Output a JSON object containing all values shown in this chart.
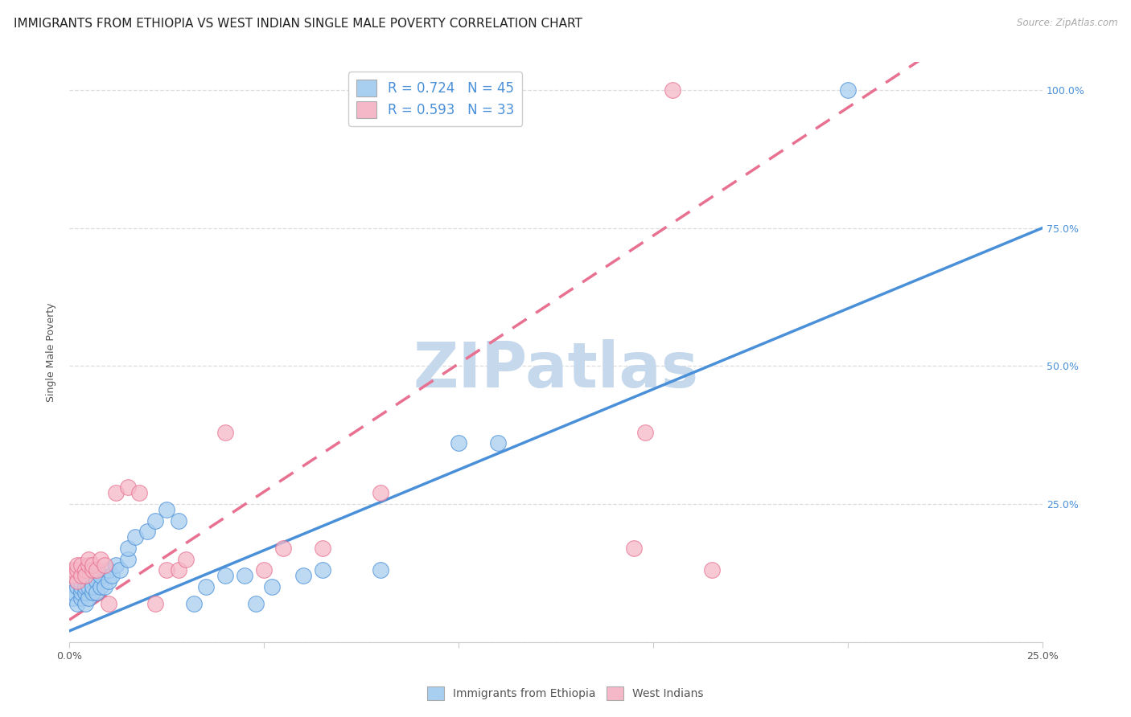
{
  "title": "IMMIGRANTS FROM ETHIOPIA VS WEST INDIAN SINGLE MALE POVERTY CORRELATION CHART",
  "source": "Source: ZipAtlas.com",
  "ylabel": "Single Male Poverty",
  "xlabel": "",
  "xlim": [
    0.0,
    0.25
  ],
  "ylim": [
    0.0,
    1.05
  ],
  "yticks": [
    0.0,
    0.25,
    0.5,
    0.75,
    1.0
  ],
  "ytick_labels": [
    "",
    "25.0%",
    "50.0%",
    "75.0%",
    "100.0%"
  ],
  "xticks": [
    0.0,
    0.05,
    0.1,
    0.15,
    0.2,
    0.25
  ],
  "xtick_labels": [
    "0.0%",
    "",
    "",
    "",
    "",
    "25.0%"
  ],
  "watermark_text": "ZIPatlas",
  "legend_r1": "R = 0.724   N = 45",
  "legend_r2": "R = 0.593   N = 33",
  "color_ethiopia": "#A8CEF0",
  "color_westindian": "#F5B8C8",
  "color_line_ethiopia": "#4A90D9",
  "color_line_westindian": "#E87090",
  "ethiopia_scatter": [
    [
      0.001,
      0.08
    ],
    [
      0.001,
      0.09
    ],
    [
      0.002,
      0.07
    ],
    [
      0.002,
      0.1
    ],
    [
      0.002,
      0.11
    ],
    [
      0.003,
      0.08
    ],
    [
      0.003,
      0.09
    ],
    [
      0.003,
      0.1
    ],
    [
      0.004,
      0.07
    ],
    [
      0.004,
      0.09
    ],
    [
      0.004,
      0.1
    ],
    [
      0.005,
      0.08
    ],
    [
      0.005,
      0.1
    ],
    [
      0.005,
      0.12
    ],
    [
      0.006,
      0.09
    ],
    [
      0.006,
      0.1
    ],
    [
      0.007,
      0.11
    ],
    [
      0.007,
      0.09
    ],
    [
      0.008,
      0.1
    ],
    [
      0.008,
      0.12
    ],
    [
      0.009,
      0.1
    ],
    [
      0.01,
      0.11
    ],
    [
      0.01,
      0.13
    ],
    [
      0.011,
      0.12
    ],
    [
      0.012,
      0.14
    ],
    [
      0.013,
      0.13
    ],
    [
      0.015,
      0.15
    ],
    [
      0.015,
      0.17
    ],
    [
      0.017,
      0.19
    ],
    [
      0.02,
      0.2
    ],
    [
      0.022,
      0.22
    ],
    [
      0.025,
      0.24
    ],
    [
      0.028,
      0.22
    ],
    [
      0.032,
      0.07
    ],
    [
      0.035,
      0.1
    ],
    [
      0.04,
      0.12
    ],
    [
      0.045,
      0.12
    ],
    [
      0.048,
      0.07
    ],
    [
      0.052,
      0.1
    ],
    [
      0.06,
      0.12
    ],
    [
      0.065,
      0.13
    ],
    [
      0.08,
      0.13
    ],
    [
      0.1,
      0.36
    ],
    [
      0.11,
      0.36
    ],
    [
      0.2,
      1.0
    ]
  ],
  "westindian_scatter": [
    [
      0.001,
      0.12
    ],
    [
      0.001,
      0.13
    ],
    [
      0.002,
      0.11
    ],
    [
      0.002,
      0.13
    ],
    [
      0.002,
      0.14
    ],
    [
      0.003,
      0.12
    ],
    [
      0.003,
      0.14
    ],
    [
      0.004,
      0.13
    ],
    [
      0.004,
      0.12
    ],
    [
      0.005,
      0.14
    ],
    [
      0.005,
      0.15
    ],
    [
      0.006,
      0.13
    ],
    [
      0.006,
      0.14
    ],
    [
      0.007,
      0.13
    ],
    [
      0.008,
      0.15
    ],
    [
      0.009,
      0.14
    ],
    [
      0.01,
      0.07
    ],
    [
      0.012,
      0.27
    ],
    [
      0.015,
      0.28
    ],
    [
      0.018,
      0.27
    ],
    [
      0.022,
      0.07
    ],
    [
      0.025,
      0.13
    ],
    [
      0.028,
      0.13
    ],
    [
      0.03,
      0.15
    ],
    [
      0.04,
      0.38
    ],
    [
      0.05,
      0.13
    ],
    [
      0.055,
      0.17
    ],
    [
      0.065,
      0.17
    ],
    [
      0.08,
      0.27
    ],
    [
      0.145,
      0.17
    ],
    [
      0.148,
      0.38
    ],
    [
      0.155,
      1.0
    ],
    [
      0.165,
      0.13
    ]
  ],
  "ethiopia_line": [
    0.0,
    0.025,
    0.75
  ],
  "westindian_line_x": [
    0.0,
    0.185
  ],
  "westindian_line_y": [
    0.04,
    1.05
  ],
  "background_color": "#FFFFFF",
  "grid_color": "#DDDDDD",
  "title_fontsize": 11,
  "axis_label_fontsize": 9,
  "tick_fontsize": 9,
  "watermark_color": "#C5D8EC",
  "watermark_fontsize": 56
}
